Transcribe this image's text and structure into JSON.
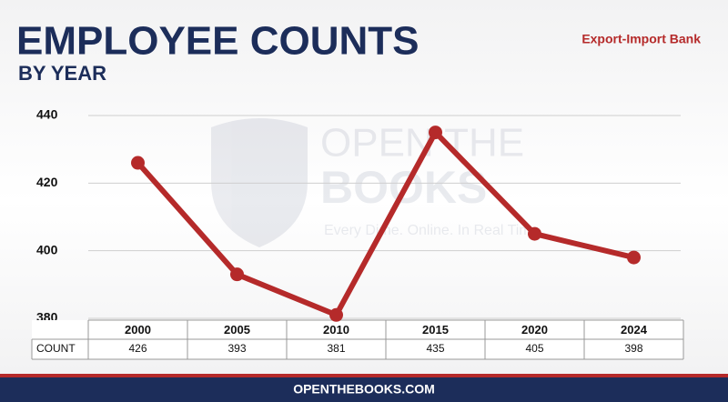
{
  "chart_data": {
    "type": "line",
    "title": "EMPLOYEE COUNTS",
    "subtitle": "BY YEAR",
    "source": "Export-Import Bank",
    "categories": [
      "2000",
      "2005",
      "2010",
      "2015",
      "2020",
      "2024"
    ],
    "series": [
      {
        "name": "COUNT",
        "color": "#b52a2a",
        "values": [
          426,
          393,
          381,
          435,
          405,
          398
        ]
      }
    ],
    "ylim": [
      380,
      440
    ],
    "yticks": [
      380,
      400,
      420,
      440
    ],
    "grid": true
  },
  "watermark": {
    "line1": "OPEN THE",
    "line2": "BOOKS",
    "tagline": "Every Dime. Online. In Real Time."
  },
  "footer": "OPENTHEBOOKS.COM"
}
